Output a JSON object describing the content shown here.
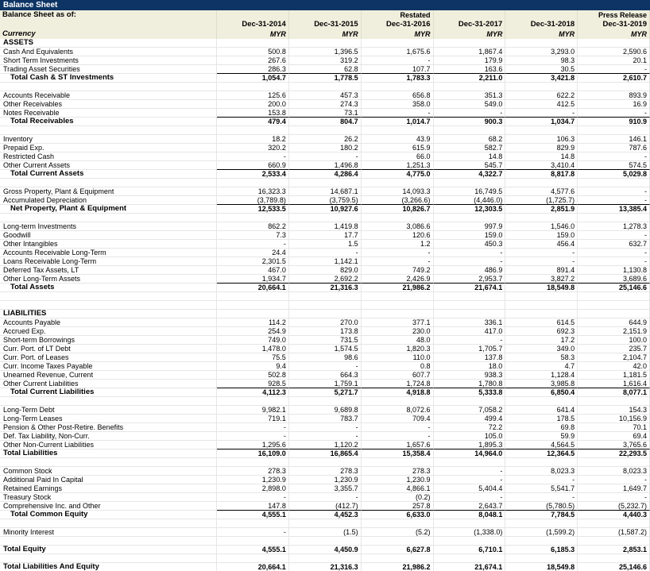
{
  "app": {
    "title": "Balance Sheet"
  },
  "colors": {
    "title_bar": "#0d3464",
    "header_background": "#f0eedd",
    "gridline": "#e6e6e6",
    "text": "#000000",
    "title_text": "#ffffff"
  },
  "header": {
    "as_of_label": "Balance Sheet as of:",
    "currency_label": "Currency",
    "columns": [
      {
        "note": "",
        "date": "Dec-31-2014",
        "currency": "MYR"
      },
      {
        "note": "",
        "date": "Dec-31-2015",
        "currency": "MYR"
      },
      {
        "note": "Restated",
        "date": "Dec-31-2016",
        "currency": "MYR"
      },
      {
        "note": "",
        "date": "Dec-31-2017",
        "currency": "MYR"
      },
      {
        "note": "",
        "date": "Dec-31-2018",
        "currency": "MYR"
      },
      {
        "note": "Press Release",
        "date": "Dec-31-2019",
        "currency": "MYR"
      }
    ]
  },
  "rows": [
    {
      "t": "sec",
      "l": "ASSETS"
    },
    {
      "t": "i",
      "l": "Cash And Equivalents",
      "v": [
        "500.8",
        "1,396.5",
        "1,675.6",
        "1,867.4",
        "3,293.0",
        "2,590.6"
      ]
    },
    {
      "t": "i",
      "l": "Short Term Investments",
      "v": [
        "267.6",
        "319.2",
        "-",
        "179.9",
        "98.3",
        "20.1"
      ]
    },
    {
      "t": "i",
      "l": "Trading Asset Securities",
      "v": [
        "286.3",
        "62.8",
        "107.7",
        "163.6",
        "30.5",
        "-"
      ],
      "u": 1
    },
    {
      "t": "t",
      "l": "Total Cash & ST Investments",
      "v": [
        "1,054.7",
        "1,778.5",
        "1,783.3",
        "2,211.0",
        "3,421.8",
        "2,610.7"
      ]
    },
    {
      "t": "b"
    },
    {
      "t": "i",
      "l": "Accounts Receivable",
      "v": [
        "125.6",
        "457.3",
        "656.8",
        "351.3",
        "622.2",
        "893.9"
      ]
    },
    {
      "t": "i",
      "l": "Other Receivables",
      "v": [
        "200.0",
        "274.3",
        "358.0",
        "549.0",
        "412.5",
        "16.9"
      ]
    },
    {
      "t": "i",
      "l": "Notes Receivable",
      "v": [
        "153.8",
        "73.1",
        "-",
        "-",
        "-",
        "-"
      ],
      "u": 1
    },
    {
      "t": "t",
      "l": "Total Receivables",
      "v": [
        "479.4",
        "804.7",
        "1,014.7",
        "900.3",
        "1,034.7",
        "910.9"
      ]
    },
    {
      "t": "b"
    },
    {
      "t": "i",
      "l": "Inventory",
      "v": [
        "18.2",
        "26.2",
        "43.9",
        "68.2",
        "106.3",
        "146.1"
      ]
    },
    {
      "t": "i",
      "l": "Prepaid Exp.",
      "v": [
        "320.2",
        "180.2",
        "615.9",
        "582.7",
        "829.9",
        "787.6"
      ]
    },
    {
      "t": "i",
      "l": "Restricted Cash",
      "v": [
        "-",
        "-",
        "66.0",
        "14.8",
        "14.8",
        "-"
      ]
    },
    {
      "t": "i",
      "l": "Other Current Assets",
      "v": [
        "660.9",
        "1,496.8",
        "1,251.3",
        "545.7",
        "3,410.4",
        "574.5"
      ],
      "u": 1
    },
    {
      "t": "t",
      "l": "Total Current Assets",
      "v": [
        "2,533.4",
        "4,286.4",
        "4,775.0",
        "4,322.7",
        "8,817.8",
        "5,029.8"
      ]
    },
    {
      "t": "b"
    },
    {
      "t": "i",
      "l": "Gross Property, Plant & Equipment",
      "v": [
        "16,323.3",
        "14,687.1",
        "14,093.3",
        "16,749.5",
        "4,577.6",
        "-"
      ]
    },
    {
      "t": "i",
      "l": "Accumulated Depreciation",
      "v": [
        "(3,789.8)",
        "(3,759.5)",
        "(3,266.6)",
        "(4,446.0)",
        "(1,725.7)",
        "-"
      ],
      "u": 1
    },
    {
      "t": "t",
      "l": "Net Property, Plant & Equipment",
      "v": [
        "12,533.5",
        "10,927.6",
        "10,826.7",
        "12,303.5",
        "2,851.9",
        "13,385.4"
      ]
    },
    {
      "t": "b"
    },
    {
      "t": "i",
      "l": "Long-term Investments",
      "v": [
        "862.2",
        "1,419.8",
        "3,086.6",
        "997.9",
        "1,546.0",
        "1,278.3"
      ]
    },
    {
      "t": "i",
      "l": "Goodwill",
      "v": [
        "7.3",
        "17.7",
        "120.6",
        "159.0",
        "159.0",
        "-"
      ]
    },
    {
      "t": "i",
      "l": "Other Intangibles",
      "v": [
        "-",
        "1.5",
        "1.2",
        "450.3",
        "456.4",
        "632.7"
      ]
    },
    {
      "t": "i",
      "l": "Accounts Receivable Long-Term",
      "v": [
        "24.4",
        "-",
        "-",
        "-",
        "-",
        "-"
      ]
    },
    {
      "t": "i",
      "l": "Loans Receivable Long-Term",
      "v": [
        "2,301.5",
        "1,142.1",
        "-",
        "-",
        "-",
        "-"
      ]
    },
    {
      "t": "i",
      "l": "Deferred Tax Assets, LT",
      "v": [
        "467.0",
        "829.0",
        "749.2",
        "486.9",
        "891.4",
        "1,130.8"
      ]
    },
    {
      "t": "i",
      "l": "Other Long-Term Assets",
      "v": [
        "1,934.7",
        "2,692.2",
        "2,426.9",
        "2,953.7",
        "3,827.2",
        "3,689.6"
      ],
      "u": 1
    },
    {
      "t": "g",
      "l": "Total Assets",
      "v": [
        "20,664.1",
        "21,316.3",
        "21,986.2",
        "21,674.1",
        "18,549.8",
        "25,146.6"
      ]
    },
    {
      "t": "b"
    },
    {
      "t": "b"
    },
    {
      "t": "sec",
      "l": "LIABILITIES"
    },
    {
      "t": "i",
      "l": "Accounts Payable",
      "v": [
        "114.2",
        "270.0",
        "377.1",
        "336.1",
        "614.5",
        "644.9"
      ]
    },
    {
      "t": "i",
      "l": "Accrued Exp.",
      "v": [
        "254.9",
        "173.8",
        "230.0",
        "417.0",
        "692.3",
        "2,151.9"
      ]
    },
    {
      "t": "i",
      "l": "Short-term Borrowings",
      "v": [
        "749.0",
        "731.5",
        "48.0",
        "-",
        "17.2",
        "100.0"
      ]
    },
    {
      "t": "i",
      "l": "Curr. Port. of LT Debt",
      "v": [
        "1,478.0",
        "1,574.5",
        "1,820.3",
        "1,705.7",
        "349.0",
        "235.7"
      ]
    },
    {
      "t": "i",
      "l": "Curr. Port. of Leases",
      "v": [
        "75.5",
        "98.6",
        "110.0",
        "137.8",
        "58.3",
        "2,104.7"
      ]
    },
    {
      "t": "i",
      "l": "Curr. Income Taxes Payable",
      "v": [
        "9.4",
        "-",
        "0.8",
        "18.0",
        "4.7",
        "42.0"
      ]
    },
    {
      "t": "i",
      "l": "Unearned Revenue, Current",
      "v": [
        "502.8",
        "664.3",
        "607.7",
        "938.3",
        "1,128.4",
        "1,181.5"
      ]
    },
    {
      "t": "i",
      "l": "Other Current Liabilities",
      "v": [
        "928.5",
        "1,759.1",
        "1,724.8",
        "1,780.8",
        "3,985.8",
        "1,616.4"
      ],
      "u": 1
    },
    {
      "t": "t",
      "l": "Total Current Liabilities",
      "v": [
        "4,112.3",
        "5,271.7",
        "4,918.8",
        "5,333.8",
        "6,850.4",
        "8,077.1"
      ]
    },
    {
      "t": "b"
    },
    {
      "t": "i",
      "l": "Long-Term Debt",
      "v": [
        "9,982.1",
        "9,689.8",
        "8,072.6",
        "7,058.2",
        "641.4",
        "154.3"
      ]
    },
    {
      "t": "i",
      "l": "Long-Term Leases",
      "v": [
        "719.1",
        "783.7",
        "709.4",
        "499.4",
        "178.5",
        "10,156.9"
      ]
    },
    {
      "t": "i",
      "l": "Pension & Other Post-Retire. Benefits",
      "v": [
        "-",
        "-",
        "-",
        "72.2",
        "69.8",
        "70.1"
      ]
    },
    {
      "t": "i",
      "l": "Def. Tax Liability, Non-Curr.",
      "v": [
        "-",
        "-",
        "-",
        "105.0",
        "59.9",
        "69.4"
      ]
    },
    {
      "t": "i",
      "l": "Other Non-Current Liabilities",
      "v": [
        "1,295.6",
        "1,120.2",
        "1,657.6",
        "1,895.3",
        "4,564.5",
        "3,765.6"
      ],
      "u": 1
    },
    {
      "t": "t",
      "l": "Total Liabilities",
      "v": [
        "16,109.0",
        "16,865.4",
        "15,358.4",
        "14,964.0",
        "12,364.5",
        "22,293.5"
      ],
      "fl": 1
    },
    {
      "t": "b"
    },
    {
      "t": "i",
      "l": "Common Stock",
      "v": [
        "278.3",
        "278.3",
        "278.3",
        "-",
        "8,023.3",
        "8,023.3"
      ]
    },
    {
      "t": "i",
      "l": "Additional Paid In Capital",
      "v": [
        "1,230.9",
        "1,230.9",
        "1,230.9",
        "-",
        "-",
        "-"
      ]
    },
    {
      "t": "i",
      "l": "Retained Earnings",
      "v": [
        "2,898.0",
        "3,355.7",
        "4,866.1",
        "5,404.4",
        "5,541.7",
        "1,649.7"
      ]
    },
    {
      "t": "i",
      "l": "Treasury Stock",
      "v": [
        "-",
        "-",
        "(0.2)",
        "-",
        "-",
        "-"
      ]
    },
    {
      "t": "i",
      "l": "Comprehensive Inc. and Other",
      "v": [
        "147.8",
        "(412.7)",
        "257.8",
        "2,643.7",
        "(5,780.5)",
        "(5,232.7)"
      ],
      "u": 1
    },
    {
      "t": "t",
      "l": "Total Common Equity",
      "v": [
        "4,555.1",
        "4,452.3",
        "6,633.0",
        "8,048.1",
        "7,784.5",
        "4,440.3"
      ]
    },
    {
      "t": "b"
    },
    {
      "t": "i",
      "l": "Minority Interest",
      "v": [
        "-",
        "(1.5)",
        "(5.2)",
        "(1,338.0)",
        "(1,599.2)",
        "(1,587.2)"
      ]
    },
    {
      "t": "b"
    },
    {
      "t": "g",
      "l": "Total Equity",
      "v": [
        "4,555.1",
        "4,450.9",
        "6,627.8",
        "6,710.1",
        "6,185.3",
        "2,853.1"
      ],
      "fl": 1
    },
    {
      "t": "b"
    },
    {
      "t": "g",
      "l": "Total Liabilities And Equity",
      "v": [
        "20,664.1",
        "21,316.3",
        "21,986.2",
        "21,674.1",
        "18,549.8",
        "25,146.6"
      ],
      "fl": 1
    }
  ]
}
